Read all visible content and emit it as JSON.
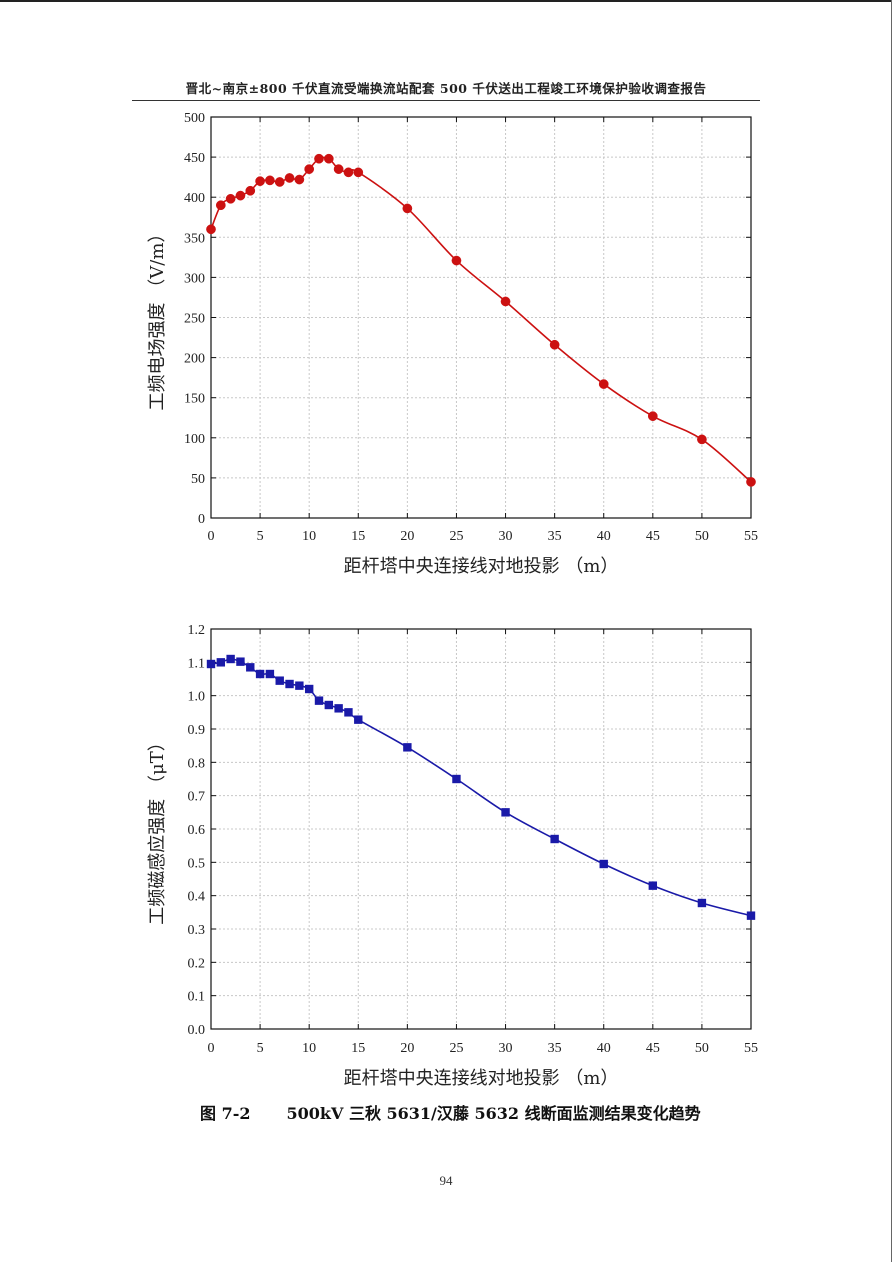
{
  "page": {
    "header": "晋北~南京±800 千伏直流受端换流站配套 500 千伏送出工程竣工环境保护验收调查报告",
    "caption_label": "图 7-2",
    "caption_text": "500kV 三秋 5631/汉藤 5632 线断面监测结果变化趋势",
    "page_number": "94"
  },
  "chart_data": [
    {
      "type": "line",
      "xlabel": "距杆塔中央连接线对地投影 （m）",
      "ylabel": "工频电场强度 （V/m）",
      "xlim": [
        0,
        55
      ],
      "ylim": [
        0,
        500
      ],
      "xticks": [
        0,
        5,
        10,
        15,
        20,
        25,
        30,
        35,
        40,
        45,
        50,
        55
      ],
      "yticks": [
        0,
        50,
        100,
        150,
        200,
        250,
        300,
        350,
        400,
        450,
        500
      ],
      "ytick_decimals": 0,
      "grid": true,
      "color": "#cc1111",
      "marker": "circle",
      "series": [
        {
          "x": [
            0,
            1,
            2,
            3,
            4,
            5,
            6,
            7,
            8,
            9,
            10,
            11,
            12,
            13,
            14,
            15,
            20,
            25,
            30,
            35,
            40,
            45,
            50,
            55
          ],
          "values": [
            360,
            390,
            398,
            402,
            408,
            420,
            421,
            419,
            424,
            422,
            435,
            448,
            448,
            435,
            431,
            431,
            386,
            321,
            270,
            216,
            167,
            127,
            98,
            45
          ]
        }
      ]
    },
    {
      "type": "line",
      "xlabel": "距杆塔中央连接线对地投影 （m）",
      "ylabel": "工频磁感应强度 （μT）",
      "xlim": [
        0,
        55
      ],
      "ylim": [
        0,
        1.2
      ],
      "xticks": [
        0,
        5,
        10,
        15,
        20,
        25,
        30,
        35,
        40,
        45,
        50,
        55
      ],
      "yticks": [
        0.0,
        0.1,
        0.2,
        0.3,
        0.4,
        0.5,
        0.6,
        0.7,
        0.8,
        0.9,
        1.0,
        1.1,
        1.2
      ],
      "ytick_decimals": 1,
      "grid": true,
      "color": "#1a1aa8",
      "marker": "square",
      "series": [
        {
          "x": [
            0,
            1,
            2,
            3,
            4,
            5,
            6,
            7,
            8,
            9,
            10,
            11,
            12,
            13,
            14,
            15,
            20,
            25,
            30,
            35,
            40,
            45,
            50,
            55
          ],
          "values": [
            1.095,
            1.1,
            1.11,
            1.102,
            1.085,
            1.065,
            1.065,
            1.045,
            1.035,
            1.03,
            1.02,
            0.985,
            0.972,
            0.962,
            0.95,
            0.928,
            0.845,
            0.75,
            0.65,
            0.57,
            0.495,
            0.43,
            0.378,
            0.34
          ]
        }
      ]
    }
  ]
}
